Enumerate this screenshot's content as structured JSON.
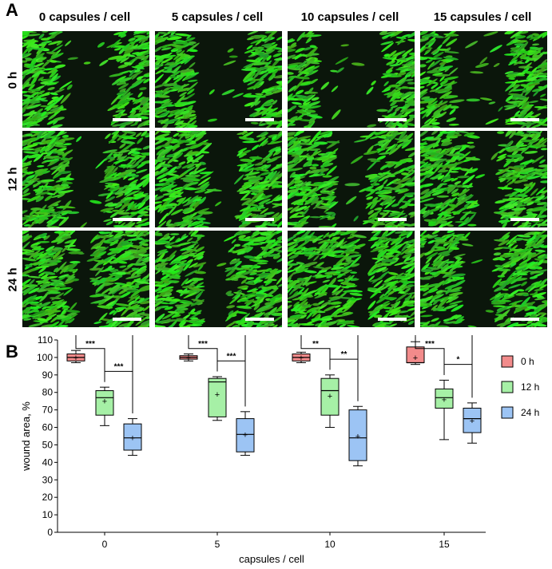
{
  "figure": {
    "panel_a": "A",
    "panel_b": "B",
    "columns": [
      "0 capsules / cell",
      "5 capsules / cell",
      "10 capsules / cell",
      "15 capsules / cell"
    ],
    "rows": [
      "0 h",
      "12 h",
      "24 h"
    ],
    "colors": {
      "cells": "#3ecf2a",
      "background": "#0c1a0c",
      "scale_bar": "#ffffff"
    }
  },
  "chart_data": {
    "type": "box",
    "xlabel": "capsules / cell",
    "ylabel": "wound area, %",
    "ylim": [
      0,
      110
    ],
    "yticks": [
      0,
      10,
      20,
      30,
      40,
      50,
      60,
      70,
      80,
      90,
      100,
      110
    ],
    "categories": [
      "0",
      "5",
      "10",
      "15"
    ],
    "series": [
      {
        "name": "0 h",
        "color": "#f28b8b",
        "boxes": [
          {
            "min": 97,
            "q1": 98,
            "median": 100,
            "q3": 102,
            "max": 104,
            "mean": 100
          },
          {
            "min": 98,
            "q1": 99,
            "median": 100,
            "q3": 101,
            "max": 102,
            "mean": 100
          },
          {
            "min": 97,
            "q1": 98,
            "median": 100,
            "q3": 102,
            "max": 103,
            "mean": 100
          },
          {
            "min": 96,
            "q1": 97,
            "median": 97,
            "q3": 106,
            "max": 109,
            "mean": 100
          }
        ]
      },
      {
        "name": "12 h",
        "color": "#a6f0a6",
        "boxes": [
          {
            "min": 61,
            "q1": 67,
            "median": 77,
            "q3": 81,
            "max": 83,
            "mean": 75
          },
          {
            "min": 64,
            "q1": 66,
            "median": 86,
            "q3": 88,
            "max": 89,
            "mean": 79
          },
          {
            "min": 60,
            "q1": 67,
            "median": 81,
            "q3": 88,
            "max": 90,
            "mean": 78
          },
          {
            "min": 53,
            "q1": 71,
            "median": 77,
            "q3": 82,
            "max": 87,
            "mean": 76
          }
        ]
      },
      {
        "name": "24 h",
        "color": "#9cc4f4",
        "boxes": [
          {
            "min": 44,
            "q1": 47,
            "median": 54,
            "q3": 62,
            "max": 65,
            "mean": 54
          },
          {
            "min": 44,
            "q1": 46,
            "median": 56,
            "q3": 65,
            "max": 69,
            "mean": 56
          },
          {
            "min": 38,
            "q1": 41,
            "median": 54,
            "q3": 70,
            "max": 72,
            "mean": 55
          },
          {
            "min": 51,
            "q1": 57,
            "median": 65,
            "q3": 71,
            "max": 74,
            "mean": 64
          }
        ]
      }
    ],
    "significance": [
      {
        "group": 0,
        "from": 0,
        "to": 2,
        "label": "****"
      },
      {
        "group": 0,
        "from": 0,
        "to": 1,
        "label": "***"
      },
      {
        "group": 0,
        "from": 1,
        "to": 2,
        "label": "***"
      },
      {
        "group": 1,
        "from": 0,
        "to": 2,
        "label": "***"
      },
      {
        "group": 1,
        "from": 0,
        "to": 1,
        "label": "***"
      },
      {
        "group": 1,
        "from": 1,
        "to": 2,
        "label": "***"
      },
      {
        "group": 2,
        "from": 0,
        "to": 2,
        "label": "***"
      },
      {
        "group": 2,
        "from": 0,
        "to": 1,
        "label": "**"
      },
      {
        "group": 2,
        "from": 1,
        "to": 2,
        "label": "**"
      },
      {
        "group": 3,
        "from": 0,
        "to": 2,
        "label": "***"
      },
      {
        "group": 3,
        "from": 0,
        "to": 1,
        "label": "***"
      },
      {
        "group": 3,
        "from": 1,
        "to": 2,
        "label": "*"
      }
    ],
    "legend": [
      "0 h",
      "12 h",
      "24 h"
    ],
    "legend_position": "right"
  }
}
